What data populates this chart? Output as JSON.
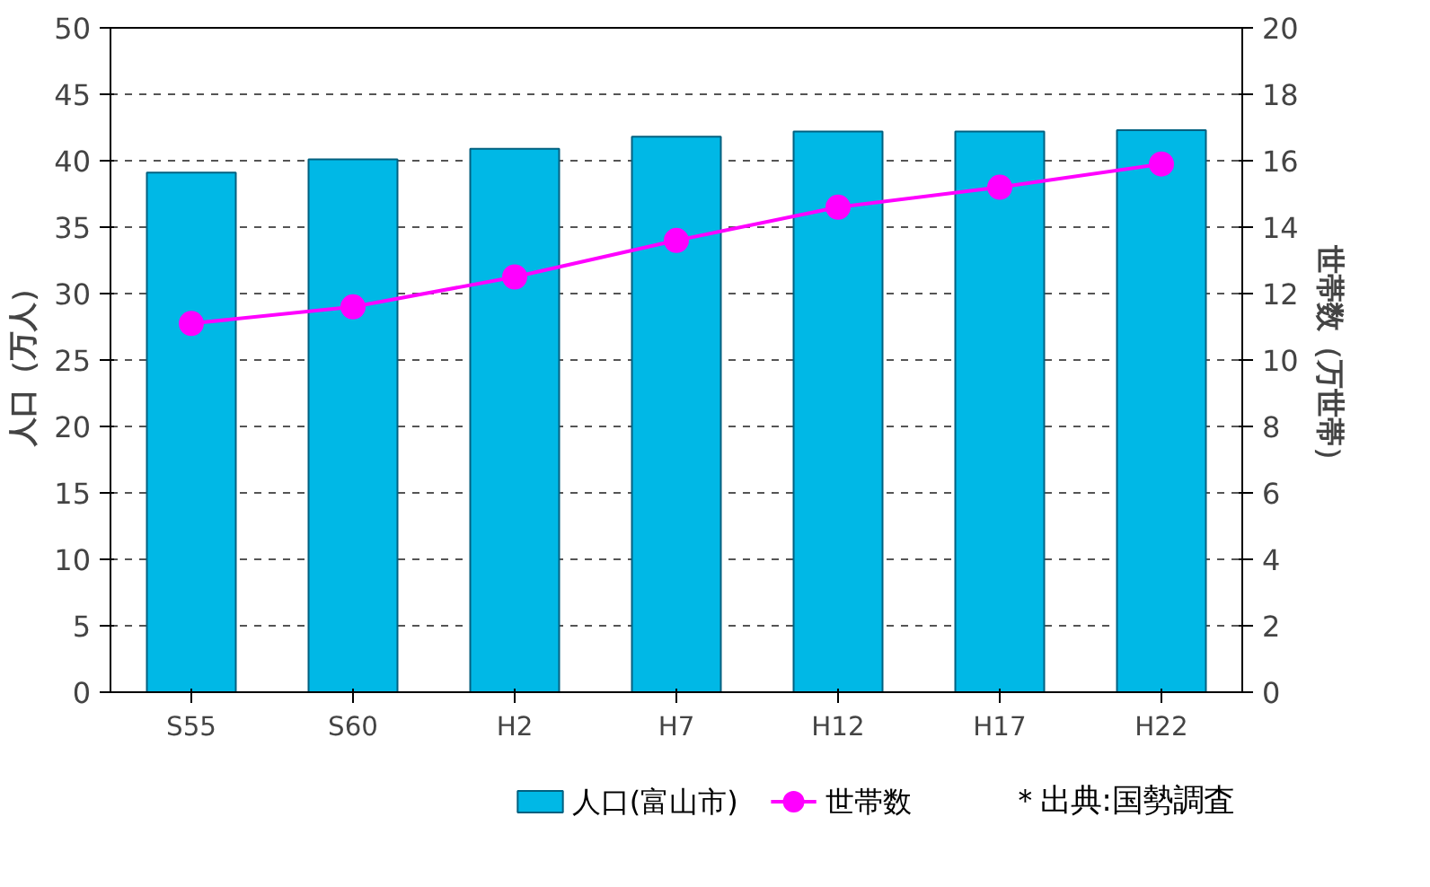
{
  "chart_data": {
    "type": "bar",
    "categories": [
      "S55",
      "S60",
      "H2",
      "H7",
      "H12",
      "H17",
      "H22"
    ],
    "ylabel": "人口（万人）",
    "y2label": "世帯数（万世帯）",
    "series": [
      {
        "name": "人口(富山市)",
        "color": "#00b8e6",
        "values": [
          39.1,
          40.1,
          40.9,
          41.8,
          42.2,
          42.2,
          42.3
        ]
      },
      {
        "name": "世帯数",
        "type": "line",
        "axis": "y2",
        "color": "#ff00ff",
        "values": [
          11.1,
          11.6,
          12.5,
          13.6,
          14.6,
          15.2,
          15.9
        ]
      }
    ],
    "ylim": [
      0,
      50
    ],
    "yticks": [
      0,
      5,
      10,
      15,
      20,
      25,
      30,
      35,
      40,
      45,
      50
    ],
    "y2lim": [
      0,
      20
    ],
    "y2ticks": [
      0,
      2,
      4,
      6,
      8,
      10,
      12,
      14,
      16,
      18,
      20
    ],
    "grid": "y",
    "legend": "bottom",
    "marker": "circle",
    "line_style": "solid",
    "annotations": [
      "＊出典:国勢調査"
    ]
  }
}
